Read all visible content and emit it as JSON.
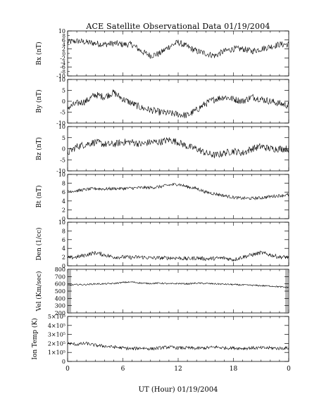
{
  "chart_data": {
    "type": "line",
    "title": "ACE Satellite Observational Data   01/19/2004",
    "xlabel": "UT (Hour)   01/19/2004",
    "x_ticks": [
      "0",
      "6",
      "12",
      "18",
      "0"
    ],
    "xlim": [
      0,
      24
    ],
    "panels": [
      {
        "ylabel": "Bx (nT)",
        "ylim": [
          -10,
          10
        ],
        "y_ticks": [
          "10",
          "6",
          "2",
          "-2",
          "-6",
          "-10"
        ],
        "y_tick_values": [
          10,
          6,
          2,
          -2,
          -6,
          -10
        ],
        "y_minor_ticks": [
          "8",
          "4",
          "0",
          "-4",
          "-8"
        ],
        "y_minor_values": [
          8,
          4,
          0,
          -4,
          -8
        ],
        "x": [
          0,
          1,
          2,
          3,
          4,
          5,
          6,
          7,
          8,
          9,
          10,
          11,
          12,
          13,
          14,
          15,
          16,
          17,
          18,
          19,
          20,
          21,
          22,
          23,
          24
        ],
        "y": [
          5,
          5.5,
          5,
          4.5,
          4,
          4.5,
          4,
          4,
          1,
          -1,
          0,
          3,
          5,
          3,
          1,
          0,
          -1,
          1,
          2,
          2,
          1,
          2,
          3,
          4,
          4
        ]
      },
      {
        "ylabel": "By (nT)",
        "ylim": [
          -10,
          10
        ],
        "y_ticks": [
          "10",
          "5",
          "0",
          "-5",
          "-10"
        ],
        "y_tick_values": [
          10,
          5,
          0,
          -5,
          -10
        ],
        "x": [
          0,
          1,
          2,
          3,
          4,
          5,
          6,
          7,
          8,
          9,
          10,
          11,
          12,
          13,
          14,
          15,
          16,
          17,
          18,
          19,
          20,
          21,
          22,
          23,
          24
        ],
        "y": [
          -3,
          -1,
          0,
          3,
          2,
          4,
          1,
          -1,
          -3,
          -4,
          -5,
          -5.5,
          -6,
          -6.5,
          -4,
          -1,
          1,
          2,
          1,
          0,
          2,
          1,
          0,
          -1,
          -2
        ]
      },
      {
        "ylabel": "Bz (nT)",
        "ylim": [
          -10,
          10
        ],
        "y_ticks": [
          "10",
          "5",
          "0",
          "-5",
          "-10"
        ],
        "y_tick_values": [
          10,
          5,
          0,
          -5,
          -10
        ],
        "x": [
          0,
          1,
          2,
          3,
          4,
          5,
          6,
          7,
          8,
          9,
          10,
          11,
          12,
          13,
          14,
          15,
          16,
          17,
          18,
          19,
          20,
          21,
          22,
          23,
          24
        ],
        "y": [
          -2,
          1,
          2,
          3,
          2,
          2,
          3,
          3,
          2,
          3,
          3,
          4,
          3,
          1,
          0,
          -2,
          -3,
          -2,
          -1,
          -2,
          0,
          1,
          0,
          0,
          0
        ]
      },
      {
        "ylabel": "Bt (nT)",
        "ylim": [
          0,
          10
        ],
        "y_ticks": [
          "10",
          "8",
          "6",
          "4",
          "2",
          "0"
        ],
        "y_tick_values": [
          10,
          8,
          6,
          4,
          2,
          0
        ],
        "x": [
          0,
          1,
          2,
          3,
          4,
          5,
          6,
          7,
          8,
          9,
          10,
          11,
          12,
          13,
          14,
          15,
          16,
          17,
          18,
          19,
          20,
          21,
          22,
          23,
          24
        ],
        "y": [
          6.2,
          6.3,
          6.6,
          6.8,
          6.7,
          6.8,
          6.8,
          6.9,
          7.0,
          7.0,
          7.2,
          7.6,
          7.8,
          7.2,
          6.8,
          6.0,
          5.6,
          5.2,
          4.8,
          4.6,
          4.6,
          4.7,
          5.0,
          5.2,
          5.4
        ]
      },
      {
        "ylabel": "Den (1/cc)",
        "ylim": [
          0,
          10
        ],
        "y_ticks": [
          "10",
          "8",
          "6",
          "4",
          "2",
          "0"
        ],
        "y_tick_values": [
          10,
          8,
          6,
          4,
          2,
          0
        ],
        "x": [
          0,
          1,
          2,
          3,
          4,
          5,
          6,
          7,
          8,
          9,
          10,
          11,
          12,
          13,
          14,
          15,
          16,
          17,
          18,
          19,
          20,
          21,
          22,
          23,
          24
        ],
        "y": [
          1.8,
          2.0,
          2.5,
          3.0,
          2.5,
          2.0,
          2.0,
          1.9,
          2.0,
          1.8,
          1.8,
          1.8,
          1.8,
          1.6,
          1.8,
          1.6,
          1.7,
          1.8,
          1.4,
          2.0,
          2.5,
          3.0,
          2.5,
          2.0,
          2.0
        ]
      },
      {
        "ylabel": "Vel (Km/sec)",
        "ylim": [
          200,
          800
        ],
        "y_ticks": [
          "800",
          "700",
          "600",
          "500",
          "400",
          "300",
          "200"
        ],
        "y_tick_values": [
          800,
          700,
          600,
          500,
          400,
          300,
          200
        ],
        "x": [
          0,
          1,
          2,
          3,
          4,
          5,
          6,
          7,
          8,
          9,
          10,
          11,
          12,
          13,
          14,
          15,
          16,
          17,
          18,
          19,
          20,
          21,
          22,
          23,
          24
        ],
        "y": [
          580,
          590,
          590,
          600,
          600,
          605,
          620,
          625,
          610,
          605,
          610,
          600,
          605,
          600,
          610,
          605,
          600,
          595,
          590,
          585,
          580,
          575,
          570,
          560,
          550
        ]
      },
      {
        "ylabel": "Ion Temp (K)",
        "ylim": [
          0,
          500000
        ],
        "y_ticks": [
          "5×10⁵",
          "4×10⁵",
          "3×10⁵",
          "2×10⁵",
          "1×10⁵",
          "0"
        ],
        "y_tick_values": [
          500000,
          400000,
          300000,
          200000,
          100000,
          0
        ],
        "x": [
          0,
          1,
          2,
          3,
          4,
          5,
          6,
          7,
          8,
          9,
          10,
          11,
          12,
          13,
          14,
          15,
          16,
          17,
          18,
          19,
          20,
          21,
          22,
          23,
          24
        ],
        "y": [
          200000,
          190000,
          200000,
          180000,
          170000,
          160000,
          150000,
          140000,
          150000,
          140000,
          150000,
          160000,
          150000,
          150000,
          145000,
          150000,
          160000,
          150000,
          150000,
          145000,
          150000,
          150000,
          150000,
          145000,
          150000
        ]
      }
    ]
  }
}
